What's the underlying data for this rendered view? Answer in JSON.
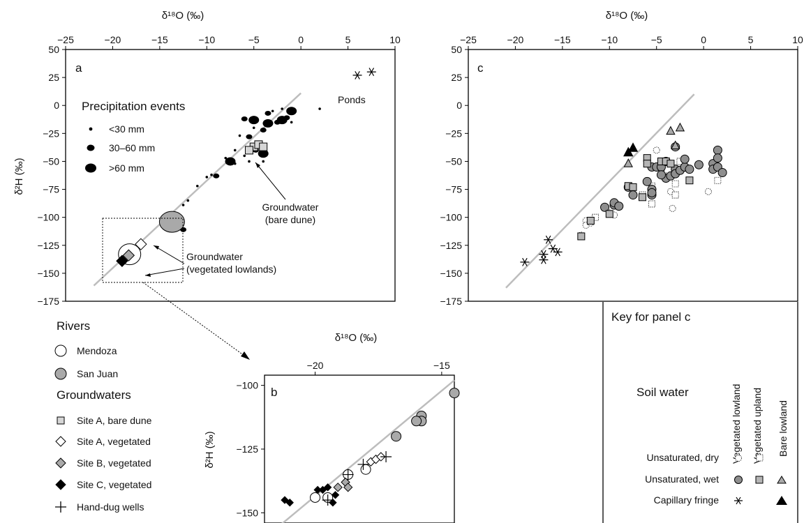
{
  "colors": {
    "gray_fill": "#a9a9a9",
    "light_fill": "#d6d6d6",
    "line": "#bdbdbd",
    "black": "#000000"
  },
  "panel_a": {
    "label": "a",
    "xlabel": "δ¹⁸O (‰)",
    "ylabel": "δ²H (‰)",
    "xticks": [
      "−25",
      "−20",
      "−15",
      "−10",
      "−5",
      "0",
      "5",
      "10"
    ],
    "yticks": [
      "50",
      "25",
      "0",
      "−25",
      "−50",
      "−75",
      "−100",
      "−125",
      "−150",
      "−175"
    ],
    "precip_title": "Precipitation events",
    "precip_items": [
      "<30 mm",
      "30–60 mm",
      ">60 mm"
    ],
    "ponds": "Ponds",
    "gw_bare_1": "Groundwater",
    "gw_bare_2": "(bare dune)",
    "gw_veg_1": "Groundwater",
    "gw_veg_2": "(vegetated lowlands)"
  },
  "panel_b": {
    "label": "b",
    "xlabel": "δ¹⁸O (‰)",
    "ylabel": "δ²H (‰)",
    "xticks": [
      "−20",
      "−15"
    ],
    "yticks": [
      "−100",
      "−125",
      "−150"
    ]
  },
  "panel_c": {
    "label": "c",
    "xlabel": "δ¹⁸O (‰)",
    "ylabel": "",
    "xticks": [
      "−25",
      "−20",
      "−15",
      "−10",
      "−5",
      "0",
      "5",
      "10"
    ],
    "yticks": [
      "50",
      "25",
      "0",
      "−25",
      "−50",
      "−75",
      "−100",
      "−125",
      "−150",
      "−175"
    ]
  },
  "legend": {
    "rivers_title": "Rivers",
    "rivers": [
      "Mendoza",
      "San Juan"
    ],
    "gw_title": "Groundwaters",
    "gw_items": [
      "Site A, bare dune",
      "Site A, vegetated",
      "Site B, vegetated",
      "Site C, vegetated",
      "Hand-dug wells"
    ]
  },
  "key_c": {
    "title": "Key for panel c",
    "soil_water": "Soil water",
    "columns": [
      "Vegetated lowland",
      "Vegetated upland",
      "Bare lowland"
    ],
    "rows": [
      "Unsaturated, dry",
      "Unsaturated, wet",
      "Capillary fringe"
    ]
  },
  "chart_data": [
    {
      "panel": "a",
      "type": "scatter",
      "xlabel": "δ¹⁸O (‰)",
      "ylabel": "δ²H (‰)",
      "xlim": [
        -25,
        10
      ],
      "ylim": [
        -175,
        50
      ],
      "reference_line": [
        [
          -22,
          -161
        ],
        [
          0,
          11
        ]
      ],
      "series": [
        {
          "name": "<30 mm",
          "points": [
            [
              -12,
              -85
            ],
            [
              -11,
              -72
            ],
            [
              -10,
              -64
            ],
            [
              -9.5,
              -62
            ],
            [
              -8,
              -47
            ],
            [
              -7,
              -40
            ],
            [
              -6,
              -45
            ],
            [
              -5.5,
              -50
            ],
            [
              -4,
              -50
            ],
            [
              -3,
              -5
            ],
            [
              -2,
              -3
            ],
            [
              2,
              -3
            ],
            [
              -1,
              -15
            ],
            [
              -6.5,
              -27
            ],
            [
              -12.5,
              -89
            ],
            [
              -7,
              -52
            ],
            [
              -5,
              -20
            ],
            [
              -4.5,
              -35
            ]
          ]
        },
        {
          "name": "30–60 mm",
          "points": [
            [
              -9,
              -63
            ],
            [
              -7.5,
              -49
            ],
            [
              -6,
              -12
            ],
            [
              -5.5,
              -28
            ],
            [
              -4,
              -22
            ],
            [
              -3.5,
              -7
            ],
            [
              -2.5,
              -15
            ],
            [
              -1.5,
              -11
            ],
            [
              -1,
              -6
            ],
            [
              -4.8,
              -40
            ],
            [
              -12.5,
              -111
            ]
          ]
        },
        {
          "name": ">60 mm",
          "points": [
            [
              -7.5,
              -50
            ],
            [
              -5,
              -13
            ],
            [
              -2,
              -13
            ],
            [
              -1,
              -5
            ],
            [
              -4,
              -43
            ],
            [
              -3.5,
              -16
            ]
          ]
        },
        {
          "name": "Ponds",
          "points": [
            [
              6,
              27
            ],
            [
              7.5,
              30
            ]
          ]
        },
        {
          "name": "Site A, bare dune",
          "points": [
            [
              -5,
              -37
            ],
            [
              -4.5,
              -35
            ],
            [
              -5.5,
              -40
            ],
            [
              -4,
              -37
            ]
          ]
        },
        {
          "name": "San Juan",
          "points": [
            [
              -13.7,
              -104
            ]
          ]
        },
        {
          "name": "Mendoza",
          "points": [
            [
              -18.2,
              -133
            ]
          ]
        },
        {
          "name": "Site A, vegetated",
          "points": [
            [
              -17,
              -124
            ]
          ]
        },
        {
          "name": "Site B, vegetated",
          "points": [
            [
              -18.3,
              -134
            ]
          ]
        },
        {
          "name": "Site C, vegetated",
          "points": [
            [
              -19,
              -139
            ]
          ]
        }
      ]
    },
    {
      "panel": "b",
      "type": "scatter",
      "xlabel": "δ¹⁸O (‰)",
      "ylabel": "δ²H (‰)",
      "xlim": [
        -22,
        -14.5
      ],
      "ylim": [
        -154,
        -96
      ],
      "reference_line": [
        [
          -22,
          -160
        ],
        [
          -14.5,
          -98
        ]
      ],
      "series": [
        {
          "name": "San Juan",
          "points": [
            [
              -14.5,
              -103
            ],
            [
              -15.8,
              -112
            ],
            [
              -15.8,
              -114
            ],
            [
              -16,
              -114
            ],
            [
              -16.8,
              -120
            ]
          ]
        },
        {
          "name": "Mendoza",
          "points": [
            [
              -20,
              -144
            ],
            [
              -19.5,
              -144
            ],
            [
              -18,
              -133
            ],
            [
              -18.7,
              -135
            ]
          ]
        },
        {
          "name": "Site A, vegetated",
          "points": [
            [
              -17.8,
              -130
            ],
            [
              -17.6,
              -129
            ],
            [
              -17.4,
              -128
            ]
          ]
        },
        {
          "name": "Site B, vegetated",
          "points": [
            [
              -19.1,
              -140
            ],
            [
              -18.8,
              -138
            ],
            [
              -18.7,
              -140
            ]
          ]
        },
        {
          "name": "Site C, vegetated",
          "points": [
            [
              -21.2,
              -145
            ],
            [
              -21,
              -146
            ],
            [
              -19.9,
              -141
            ],
            [
              -19.7,
              -141
            ],
            [
              -19.5,
              -140
            ],
            [
              -19.3,
              -146
            ],
            [
              -19.2,
              -143
            ]
          ]
        },
        {
          "name": "Hand-dug wells",
          "points": [
            [
              -18.1,
              -131
            ],
            [
              -17.2,
              -128
            ],
            [
              -18.7,
              -135
            ],
            [
              -19.5,
              -145
            ]
          ]
        }
      ]
    },
    {
      "panel": "c",
      "type": "scatter",
      "xlabel": "δ¹⁸O (‰)",
      "xlim": [
        -25,
        10
      ],
      "ylim": [
        -175,
        50
      ],
      "reference_line": [
        [
          -21,
          -163
        ],
        [
          -1,
          10
        ]
      ],
      "series": [
        {
          "name": "Unsaturated, dry – Vegetated lowland",
          "points": [
            [
              -12.5,
              -103
            ],
            [
              -13,
              -116
            ],
            [
              -12.5,
              -107
            ],
            [
              -12,
              -105
            ],
            [
              -10,
              -96
            ],
            [
              -9.5,
              -98
            ],
            [
              -5,
              -40
            ],
            [
              -4,
              -63
            ],
            [
              -3.5,
              -77
            ],
            [
              -3.3,
              -92
            ],
            [
              0.5,
              -77
            ],
            [
              -3,
              -37
            ]
          ]
        },
        {
          "name": "Unsaturated, dry – Vegetated upland",
          "points": [
            [
              -11.5,
              -100
            ],
            [
              -6.5,
              -80
            ],
            [
              -5.5,
              -88
            ],
            [
              -5.5,
              -72
            ],
            [
              -4.5,
              -60
            ],
            [
              -3,
              -70
            ],
            [
              -3,
              -80
            ],
            [
              -2.5,
              -50
            ],
            [
              1.5,
              -67
            ]
          ]
        },
        {
          "name": "Unsaturated, wet – Vegetated lowland",
          "points": [
            [
              -10.5,
              -91
            ],
            [
              -9.5,
              -89
            ],
            [
              -9.5,
              -87
            ],
            [
              -9,
              -90
            ],
            [
              -8,
              -73
            ],
            [
              -7.5,
              -80
            ],
            [
              -6,
              -68
            ],
            [
              -5.5,
              -75
            ],
            [
              -5.5,
              -80
            ],
            [
              -5.5,
              -55
            ],
            [
              -5,
              -55
            ],
            [
              -4.5,
              -55
            ],
            [
              -4,
              -50
            ],
            [
              -4,
              -65
            ],
            [
              -3.5,
              -63
            ],
            [
              -3,
              -57
            ],
            [
              -3,
              -61
            ],
            [
              -2.5,
              -58
            ],
            [
              -2,
              -55
            ],
            [
              -1.5,
              -57
            ],
            [
              -0.5,
              -53
            ],
            [
              1,
              -52
            ],
            [
              1.5,
              -40
            ],
            [
              1.5,
              -47
            ],
            [
              1,
              -57
            ],
            [
              1.5,
              -55
            ],
            [
              2,
              -60
            ],
            [
              -3,
              -37
            ],
            [
              -2,
              -48
            ],
            [
              -4.5,
              -62
            ],
            [
              -5.5,
              -78
            ]
          ]
        },
        {
          "name": "Unsaturated, wet – Vegetated upland",
          "points": [
            [
              -13,
              -117
            ],
            [
              -12,
              -103
            ],
            [
              -10,
              -97
            ],
            [
              -8,
              -72
            ],
            [
              -7.5,
              -73
            ],
            [
              -6,
              -47
            ],
            [
              -6,
              -52
            ],
            [
              -4.5,
              -50
            ],
            [
              -4,
              -50
            ],
            [
              -3.5,
              -52
            ],
            [
              -1.5,
              -67
            ],
            [
              -6.5,
              -82
            ]
          ]
        },
        {
          "name": "Unsaturated, wet – Bare lowland",
          "points": [
            [
              -3.5,
              -23
            ],
            [
              -2.5,
              -20
            ],
            [
              -3,
              -36
            ],
            [
              -8,
              -52
            ]
          ]
        },
        {
          "name": "Capillary fringe – Vegetated lowland",
          "points": [
            [
              -19,
              -140
            ],
            [
              -17,
              -133
            ],
            [
              -17,
              -138
            ],
            [
              -16.5,
              -120
            ],
            [
              -15.5,
              -131
            ],
            [
              -16,
              -128
            ]
          ]
        },
        {
          "name": "Capillary fringe – Bare lowland",
          "points": [
            [
              -8,
              -42
            ],
            [
              -7.5,
              -38
            ]
          ]
        }
      ]
    }
  ]
}
